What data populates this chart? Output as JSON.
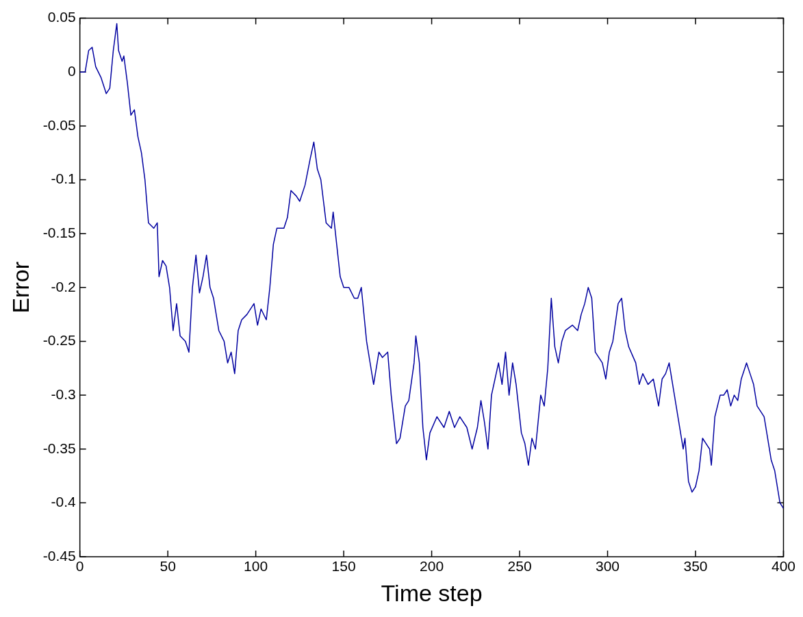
{
  "chart_data": {
    "type": "line",
    "xlabel": "Time step",
    "ylabel": "Error",
    "xlim": [
      0,
      400
    ],
    "xticks": [
      0,
      50,
      100,
      150,
      200,
      250,
      300,
      350,
      400
    ],
    "ylim": [
      -0.45,
      0.05
    ],
    "yticks": [
      -0.45,
      -0.4,
      -0.35,
      -0.3,
      -0.25,
      -0.2,
      -0.15,
      -0.1,
      -0.05,
      0,
      0.05
    ],
    "grid": false,
    "legend": false,
    "marker": "none",
    "line_style": "solid",
    "series": [
      {
        "color": "#0000a0",
        "x": [
          0,
          3,
          5,
          7,
          9,
          12,
          15,
          17,
          19,
          21,
          22,
          24,
          25,
          27,
          29,
          31,
          33,
          35,
          37,
          39,
          42,
          44,
          45,
          47,
          49,
          51,
          53,
          55,
          57,
          60,
          62,
          64,
          66,
          68,
          70,
          72,
          74,
          76,
          79,
          82,
          84,
          86,
          88,
          90,
          92,
          95,
          99,
          101,
          103,
          106,
          108,
          110,
          112,
          116,
          118,
          120,
          123,
          125,
          128,
          131,
          133,
          135,
          137,
          140,
          143,
          144,
          146,
          148,
          150,
          153,
          156,
          158,
          160,
          163,
          165,
          167,
          170,
          172,
          175,
          177,
          180,
          182,
          185,
          187,
          190,
          191,
          193,
          195,
          197,
          199,
          203,
          207,
          210,
          213,
          216,
          220,
          223,
          226,
          228,
          230,
          232,
          234,
          236,
          238,
          240,
          242,
          244,
          246,
          248,
          251,
          253,
          255,
          257,
          259,
          262,
          264,
          266,
          268,
          270,
          272,
          274,
          276,
          280,
          283,
          285,
          287,
          289,
          291,
          293,
          297,
          299,
          301,
          303,
          306,
          308,
          310,
          312,
          316,
          318,
          320,
          323,
          326,
          329,
          331,
          333,
          335,
          338,
          341,
          343,
          344,
          346,
          348,
          350,
          352,
          354,
          356,
          358,
          359,
          361,
          364,
          366,
          368,
          370,
          372,
          374,
          376,
          379,
          381,
          383,
          385,
          387,
          389,
          391,
          393,
          395,
          397,
          398,
          400
        ],
        "values": [
          0,
          0,
          0.02,
          0.023,
          0.005,
          -0.005,
          -0.02,
          -0.015,
          0.02,
          0.045,
          0.02,
          0.01,
          0.015,
          -0.01,
          -0.04,
          -0.035,
          -0.06,
          -0.075,
          -0.1,
          -0.14,
          -0.145,
          -0.14,
          -0.19,
          -0.175,
          -0.18,
          -0.2,
          -0.24,
          -0.215,
          -0.245,
          -0.25,
          -0.26,
          -0.2,
          -0.17,
          -0.205,
          -0.19,
          -0.17,
          -0.2,
          -0.21,
          -0.24,
          -0.25,
          -0.27,
          -0.26,
          -0.28,
          -0.24,
          -0.23,
          -0.225,
          -0.215,
          -0.235,
          -0.22,
          -0.23,
          -0.2,
          -0.16,
          -0.145,
          -0.145,
          -0.135,
          -0.11,
          -0.115,
          -0.12,
          -0.105,
          -0.08,
          -0.065,
          -0.09,
          -0.1,
          -0.14,
          -0.145,
          -0.13,
          -0.16,
          -0.19,
          -0.2,
          -0.2,
          -0.21,
          -0.21,
          -0.2,
          -0.25,
          -0.27,
          -0.29,
          -0.26,
          -0.265,
          -0.26,
          -0.3,
          -0.345,
          -0.34,
          -0.31,
          -0.305,
          -0.27,
          -0.245,
          -0.27,
          -0.33,
          -0.36,
          -0.335,
          -0.32,
          -0.33,
          -0.315,
          -0.33,
          -0.32,
          -0.33,
          -0.35,
          -0.33,
          -0.305,
          -0.325,
          -0.35,
          -0.3,
          -0.285,
          -0.27,
          -0.29,
          -0.26,
          -0.3,
          -0.27,
          -0.29,
          -0.335,
          -0.345,
          -0.365,
          -0.34,
          -0.35,
          -0.3,
          -0.31,
          -0.275,
          -0.21,
          -0.255,
          -0.27,
          -0.25,
          -0.24,
          -0.235,
          -0.24,
          -0.225,
          -0.215,
          -0.2,
          -0.21,
          -0.26,
          -0.27,
          -0.285,
          -0.26,
          -0.25,
          -0.215,
          -0.21,
          -0.24,
          -0.255,
          -0.27,
          -0.29,
          -0.28,
          -0.29,
          -0.285,
          -0.31,
          -0.285,
          -0.28,
          -0.27,
          -0.3,
          -0.33,
          -0.35,
          -0.34,
          -0.38,
          -0.39,
          -0.385,
          -0.37,
          -0.34,
          -0.345,
          -0.35,
          -0.365,
          -0.32,
          -0.3,
          -0.3,
          -0.295,
          -0.31,
          -0.3,
          -0.305,
          -0.285,
          -0.27,
          -0.28,
          -0.29,
          -0.31,
          -0.315,
          -0.32,
          -0.34,
          -0.36,
          -0.37,
          -0.39,
          -0.4,
          -0.405
        ]
      }
    ]
  }
}
